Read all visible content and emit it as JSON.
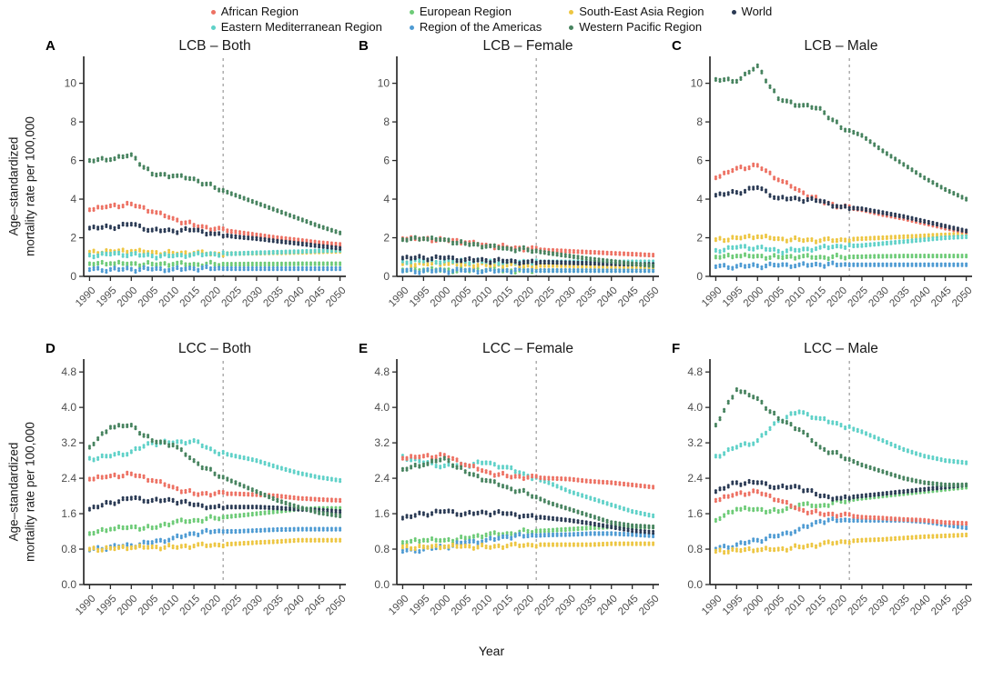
{
  "figure": {
    "y_axis_label_line1": "Age–standardized",
    "y_axis_label_line2": "mortality rate per 100,000",
    "x_axis_label": "Year",
    "forecast_year": 2022,
    "colors": {
      "background": "#ffffff",
      "axis": "#2b2b2b",
      "tick_label": "#4d4d4d",
      "dashed_line": "#9a9a9a",
      "title": "#1a1a1a"
    }
  },
  "legend": {
    "items": [
      {
        "label": "African Region",
        "color": "#ED7163"
      },
      {
        "label": "Eastern Mediterranean Region",
        "color": "#5FD1C8"
      },
      {
        "label": "European Region",
        "color": "#6DCB77"
      },
      {
        "label": "Region of the Americas",
        "color": "#4E9BD3"
      },
      {
        "label": "South-East Asia Region",
        "color": "#EDC642"
      },
      {
        "label": "Western Pacific Region",
        "color": "#47835F"
      },
      {
        "label": "World",
        "color": "#2A3A54"
      }
    ]
  },
  "chart_data": [
    {
      "panel": "A",
      "title": "LCB – Both",
      "type": "scatter",
      "row": 1,
      "x": [
        1990,
        1995,
        2000,
        2005,
        2010,
        2015,
        2020,
        2025,
        2030,
        2035,
        2040,
        2045,
        2050
      ],
      "ylim": [
        0,
        11.3
      ],
      "yticks": [
        0,
        2,
        4,
        6,
        8,
        10
      ],
      "ytick_labels": [
        "0",
        "2",
        "4",
        "6",
        "8",
        "10"
      ],
      "series": [
        {
          "name": "African Region",
          "values": [
            3.45,
            3.65,
            3.75,
            3.35,
            3.0,
            2.65,
            2.45,
            2.3,
            2.15,
            2.0,
            1.88,
            1.75,
            1.65
          ]
        },
        {
          "name": "Eastern Mediterranean Region",
          "values": [
            1.1,
            1.15,
            1.15,
            1.05,
            1.05,
            1.15,
            1.15,
            1.18,
            1.22,
            1.25,
            1.28,
            1.32,
            1.35
          ]
        },
        {
          "name": "European Region",
          "values": [
            0.65,
            0.66,
            0.66,
            0.64,
            0.63,
            0.63,
            0.63,
            0.63,
            0.64,
            0.64,
            0.65,
            0.65,
            0.65
          ]
        },
        {
          "name": "Region of the Americas",
          "values": [
            0.35,
            0.36,
            0.37,
            0.37,
            0.38,
            0.4,
            0.4,
            0.4,
            0.4,
            0.4,
            0.4,
            0.4,
            0.4
          ]
        },
        {
          "name": "South-East Asia Region",
          "values": [
            1.25,
            1.3,
            1.3,
            1.25,
            1.2,
            1.2,
            1.18,
            1.18,
            1.2,
            1.22,
            1.24,
            1.27,
            1.3
          ]
        },
        {
          "name": "Western Pacific Region",
          "values": [
            6.0,
            6.05,
            6.3,
            5.3,
            5.2,
            5.05,
            4.6,
            4.2,
            3.8,
            3.4,
            3.0,
            2.6,
            2.25
          ]
        },
        {
          "name": "World",
          "values": [
            2.5,
            2.55,
            2.7,
            2.4,
            2.35,
            2.4,
            2.2,
            2.05,
            1.95,
            1.82,
            1.7,
            1.57,
            1.45
          ]
        }
      ]
    },
    {
      "panel": "B",
      "title": "LCB – Female",
      "type": "scatter",
      "row": 1,
      "x": [
        1990,
        1995,
        2000,
        2005,
        2010,
        2015,
        2020,
        2025,
        2030,
        2035,
        2040,
        2045,
        2050
      ],
      "ylim": [
        0,
        11.3
      ],
      "yticks": [
        0,
        2,
        4,
        6,
        8,
        10
      ],
      "ytick_labels": [
        "0",
        "2",
        "4",
        "6",
        "8",
        "10"
      ],
      "series": [
        {
          "name": "African Region",
          "values": [
            1.95,
            1.95,
            1.9,
            1.75,
            1.62,
            1.5,
            1.42,
            1.35,
            1.3,
            1.25,
            1.2,
            1.15,
            1.1
          ]
        },
        {
          "name": "Eastern Mediterranean Region",
          "values": [
            0.8,
            0.8,
            0.8,
            0.78,
            0.76,
            0.75,
            0.75,
            0.75,
            0.75,
            0.75,
            0.75,
            0.75,
            0.75
          ]
        },
        {
          "name": "European Region",
          "values": [
            0.33,
            0.33,
            0.33,
            0.32,
            0.32,
            0.31,
            0.3,
            0.3,
            0.3,
            0.3,
            0.3,
            0.3,
            0.3
          ]
        },
        {
          "name": "Region of the Americas",
          "values": [
            0.28,
            0.28,
            0.29,
            0.3,
            0.3,
            0.3,
            0.3,
            0.3,
            0.3,
            0.3,
            0.3,
            0.3,
            0.3
          ]
        },
        {
          "name": "South-East Asia Region",
          "values": [
            0.65,
            0.66,
            0.65,
            0.62,
            0.6,
            0.58,
            0.57,
            0.56,
            0.55,
            0.53,
            0.52,
            0.51,
            0.5
          ]
        },
        {
          "name": "Western Pacific Region",
          "values": [
            1.9,
            1.95,
            1.9,
            1.7,
            1.55,
            1.45,
            1.37,
            1.2,
            1.05,
            0.9,
            0.78,
            0.65,
            0.55
          ]
        },
        {
          "name": "World",
          "values": [
            0.95,
            0.96,
            0.95,
            0.87,
            0.82,
            0.78,
            0.75,
            0.73,
            0.7,
            0.68,
            0.65,
            0.63,
            0.62
          ]
        }
      ]
    },
    {
      "panel": "C",
      "title": "LCB – Male",
      "type": "scatter",
      "row": 1,
      "x": [
        1990,
        1995,
        2000,
        2005,
        2010,
        2015,
        2020,
        2025,
        2030,
        2035,
        2040,
        2045,
        2050
      ],
      "ylim": [
        0,
        11.3
      ],
      "yticks": [
        0,
        2,
        4,
        6,
        8,
        10
      ],
      "ytick_labels": [
        "0",
        "2",
        "4",
        "6",
        "8",
        "10"
      ],
      "series": [
        {
          "name": "African Region",
          "values": [
            5.1,
            5.6,
            5.75,
            5.0,
            4.45,
            3.9,
            3.6,
            3.45,
            3.2,
            3.0,
            2.75,
            2.5,
            2.3
          ]
        },
        {
          "name": "Eastern Mediterranean Region",
          "values": [
            1.35,
            1.5,
            1.5,
            1.3,
            1.35,
            1.5,
            1.55,
            1.6,
            1.7,
            1.8,
            1.9,
            2.0,
            2.05
          ]
        },
        {
          "name": "European Region",
          "values": [
            1.0,
            1.05,
            1.05,
            1.0,
            1.0,
            1.0,
            1.0,
            1.02,
            1.04,
            1.05,
            1.05,
            1.05,
            1.05
          ]
        },
        {
          "name": "Region of the Americas",
          "values": [
            0.5,
            0.52,
            0.55,
            0.57,
            0.6,
            0.6,
            0.6,
            0.6,
            0.6,
            0.6,
            0.6,
            0.6,
            0.6
          ]
        },
        {
          "name": "South-East Asia Region",
          "values": [
            1.9,
            2.0,
            2.05,
            1.95,
            1.9,
            1.85,
            1.9,
            1.95,
            2.0,
            2.05,
            2.1,
            2.15,
            2.2
          ]
        },
        {
          "name": "Western Pacific Region",
          "values": [
            10.2,
            10.1,
            10.9,
            9.2,
            8.85,
            8.7,
            7.7,
            7.3,
            6.5,
            5.8,
            5.1,
            4.5,
            4.0
          ]
        },
        {
          "name": "World",
          "values": [
            4.2,
            4.35,
            4.6,
            4.05,
            4.0,
            3.9,
            3.6,
            3.5,
            3.3,
            3.1,
            2.85,
            2.6,
            2.35
          ]
        }
      ]
    },
    {
      "panel": "D",
      "title": "LCC – Both",
      "type": "scatter",
      "row": 2,
      "x": [
        1990,
        1995,
        2000,
        2005,
        2010,
        2015,
        2020,
        2025,
        2030,
        2035,
        2040,
        2045,
        2050
      ],
      "ylim": [
        0,
        5.05
      ],
      "yticks": [
        0,
        0.8,
        1.6,
        2.4,
        3.2,
        4.0,
        4.8
      ],
      "ytick_labels": [
        "0.0",
        "0.8",
        "1.6",
        "2.4",
        "3.2",
        "4.0",
        "4.8"
      ],
      "series": [
        {
          "name": "African Region",
          "values": [
            2.38,
            2.45,
            2.5,
            2.35,
            2.2,
            2.05,
            2.05,
            2.05,
            2.03,
            2.0,
            1.95,
            1.92,
            1.9
          ]
        },
        {
          "name": "Eastern Mediterranean Region",
          "values": [
            2.85,
            2.9,
            3.0,
            3.2,
            3.2,
            3.25,
            3.0,
            2.9,
            2.8,
            2.65,
            2.52,
            2.42,
            2.35
          ]
        },
        {
          "name": "European Region",
          "values": [
            1.15,
            1.25,
            1.3,
            1.28,
            1.4,
            1.45,
            1.5,
            1.55,
            1.6,
            1.65,
            1.7,
            1.72,
            1.72
          ]
        },
        {
          "name": "Region of the Americas",
          "values": [
            0.78,
            0.85,
            0.88,
            0.95,
            1.05,
            1.15,
            1.2,
            1.2,
            1.22,
            1.24,
            1.25,
            1.25,
            1.25
          ]
        },
        {
          "name": "South-East Asia Region",
          "values": [
            0.8,
            0.82,
            0.83,
            0.85,
            0.85,
            0.87,
            0.9,
            0.92,
            0.95,
            0.97,
            1.0,
            1.0,
            1.0
          ]
        },
        {
          "name": "Western Pacific Region",
          "values": [
            3.1,
            3.55,
            3.6,
            3.25,
            3.15,
            2.8,
            2.5,
            2.3,
            2.1,
            1.9,
            1.75,
            1.62,
            1.55
          ]
        },
        {
          "name": "World",
          "values": [
            1.7,
            1.85,
            1.95,
            1.9,
            1.9,
            1.8,
            1.75,
            1.75,
            1.75,
            1.73,
            1.7,
            1.68,
            1.65
          ]
        }
      ]
    },
    {
      "panel": "E",
      "title": "LCC – Female",
      "type": "scatter",
      "row": 2,
      "x": [
        1990,
        1995,
        2000,
        2005,
        2010,
        2015,
        2020,
        2025,
        2030,
        2035,
        2040,
        2045,
        2050
      ],
      "ylim": [
        0,
        5.05
      ],
      "yticks": [
        0,
        0.8,
        1.6,
        2.4,
        3.2,
        4.0,
        4.8
      ],
      "ytick_labels": [
        "0.0",
        "0.8",
        "1.6",
        "2.4",
        "3.2",
        "4.0",
        "4.8"
      ],
      "series": [
        {
          "name": "African Region",
          "values": [
            2.85,
            2.9,
            2.92,
            2.7,
            2.55,
            2.45,
            2.42,
            2.4,
            2.38,
            2.33,
            2.3,
            2.25,
            2.2
          ]
        },
        {
          "name": "Eastern Mediterranean Region",
          "values": [
            2.9,
            2.75,
            2.68,
            2.7,
            2.75,
            2.65,
            2.45,
            2.3,
            2.1,
            1.95,
            1.8,
            1.65,
            1.55
          ]
        },
        {
          "name": "European Region",
          "values": [
            0.95,
            1.0,
            1.0,
            1.05,
            1.12,
            1.15,
            1.2,
            1.22,
            1.25,
            1.28,
            1.3,
            1.3,
            1.3
          ]
        },
        {
          "name": "Region of the Americas",
          "values": [
            0.75,
            0.8,
            0.85,
            0.95,
            1.0,
            1.08,
            1.1,
            1.12,
            1.13,
            1.15,
            1.15,
            1.13,
            1.1
          ]
        },
        {
          "name": "South-East Asia Region",
          "values": [
            0.85,
            0.85,
            0.85,
            0.87,
            0.85,
            0.87,
            0.9,
            0.9,
            0.9,
            0.9,
            0.92,
            0.92,
            0.92
          ]
        },
        {
          "name": "Western Pacific Region",
          "values": [
            2.6,
            2.7,
            2.85,
            2.55,
            2.35,
            2.2,
            2.05,
            1.85,
            1.7,
            1.55,
            1.4,
            1.33,
            1.3
          ]
        },
        {
          "name": "World",
          "values": [
            1.5,
            1.6,
            1.65,
            1.6,
            1.62,
            1.6,
            1.55,
            1.5,
            1.45,
            1.38,
            1.3,
            1.22,
            1.18
          ]
        }
      ]
    },
    {
      "panel": "F",
      "title": "LCC – Male",
      "type": "scatter",
      "row": 2,
      "x": [
        1990,
        1995,
        2000,
        2005,
        2010,
        2015,
        2020,
        2025,
        2030,
        2035,
        2040,
        2045,
        2050
      ],
      "ylim": [
        0,
        5.05
      ],
      "yticks": [
        0,
        0.8,
        1.6,
        2.4,
        3.2,
        4.0,
        4.8
      ],
      "ytick_labels": [
        "0.0",
        "0.8",
        "1.6",
        "2.4",
        "3.2",
        "4.0",
        "4.8"
      ],
      "series": [
        {
          "name": "African Region",
          "values": [
            1.9,
            2.05,
            2.1,
            1.9,
            1.7,
            1.6,
            1.57,
            1.52,
            1.5,
            1.47,
            1.45,
            1.4,
            1.38
          ]
        },
        {
          "name": "Eastern Mediterranean Region",
          "values": [
            2.9,
            3.1,
            3.25,
            3.7,
            3.9,
            3.75,
            3.6,
            3.45,
            3.25,
            3.05,
            2.9,
            2.8,
            2.75
          ]
        },
        {
          "name": "European Region",
          "values": [
            1.45,
            1.7,
            1.7,
            1.65,
            1.8,
            1.78,
            1.88,
            1.95,
            2.0,
            2.05,
            2.1,
            2.15,
            2.2
          ]
        },
        {
          "name": "Region of the Americas",
          "values": [
            0.8,
            0.9,
            1.0,
            1.1,
            1.25,
            1.43,
            1.45,
            1.45,
            1.45,
            1.45,
            1.42,
            1.35,
            1.28
          ]
        },
        {
          "name": "South-East Asia Region",
          "values": [
            0.75,
            0.78,
            0.78,
            0.8,
            0.85,
            0.9,
            0.97,
            1.0,
            1.02,
            1.05,
            1.08,
            1.1,
            1.12
          ]
        },
        {
          "name": "Western Pacific Region",
          "values": [
            3.6,
            4.4,
            4.2,
            3.75,
            3.5,
            3.1,
            2.9,
            2.7,
            2.55,
            2.4,
            2.3,
            2.25,
            2.25
          ]
        },
        {
          "name": "World",
          "values": [
            2.1,
            2.3,
            2.3,
            2.2,
            2.2,
            2.0,
            1.95,
            2.0,
            2.05,
            2.1,
            2.15,
            2.2,
            2.25
          ]
        }
      ]
    }
  ]
}
